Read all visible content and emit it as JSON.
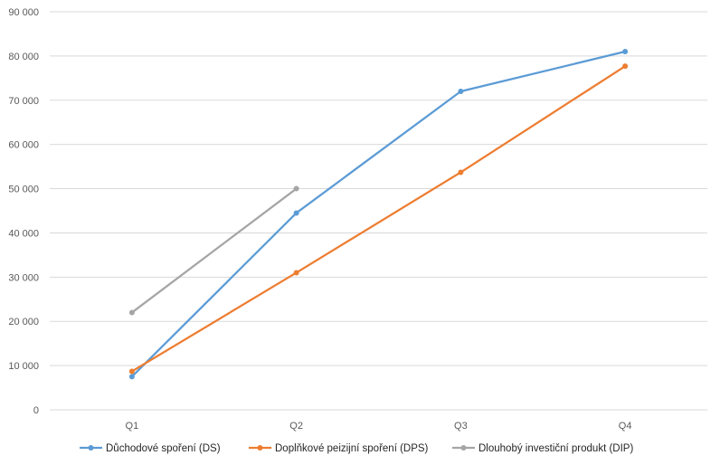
{
  "chart_data": {
    "type": "line",
    "categories": [
      "Q1",
      "Q2",
      "Q3",
      "Q4"
    ],
    "ylim": [
      0,
      90000
    ],
    "yticks": [
      0,
      10000,
      20000,
      30000,
      40000,
      50000,
      60000,
      70000,
      80000,
      90000
    ],
    "ytick_labels": [
      "0",
      "10 000",
      "20 000",
      "30 000",
      "40 000",
      "50 000",
      "60 000",
      "70 000",
      "80 000",
      "90 000"
    ],
    "grid": true,
    "legend_position": "bottom",
    "series": [
      {
        "name": "Důchodové spoření (DS)",
        "color": "#5b9bd5",
        "values": [
          7500,
          44500,
          72000,
          81000
        ]
      },
      {
        "name": "Doplňkové peizijní spoření (DPS)",
        "color": "#ed7d31",
        "values": [
          8700,
          31000,
          53700,
          77700
        ]
      },
      {
        "name": "Dlouhobý investiční produkt (DIP)",
        "color": "#a5a5a5",
        "values": [
          22000,
          50000,
          null,
          null
        ]
      }
    ]
  }
}
